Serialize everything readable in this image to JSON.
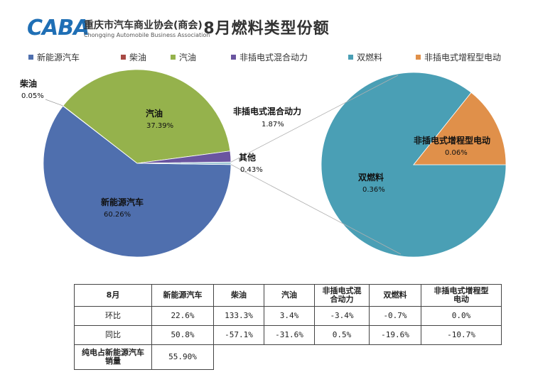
{
  "logo": {
    "mark": "CABA",
    "name_cn": "重庆市汽车商业协会(商会)",
    "name_en": "Chongqing Automobile Business Association"
  },
  "title": "8月燃料类型份额",
  "legend": [
    {
      "name": "新能源汽车",
      "color": "#4f6fae"
    },
    {
      "name": "柴油",
      "color": "#a84a45"
    },
    {
      "name": "汽油",
      "color": "#95b24c"
    },
    {
      "name": "非插电式混合动力",
      "color": "#6a55a0"
    },
    {
      "name": "双燃料",
      "color": "#4a9fb5"
    },
    {
      "name": "非插电式增程型电动",
      "color": "#e0904a"
    }
  ],
  "chart_data": {
    "type": "pie",
    "title": "8月燃料类型份额",
    "main_pie": {
      "slices": [
        {
          "name": "新能源汽车",
          "value": 60.26,
          "label": "60.26%",
          "color": "#4f6fae"
        },
        {
          "name": "柴油",
          "value": 0.05,
          "label": "0.05%",
          "color": "#a84a45"
        },
        {
          "name": "汽油",
          "value": 37.39,
          "label": "37.39%",
          "color": "#95b24c"
        },
        {
          "name": "非插电式混合动力",
          "value": 1.87,
          "label": "1.87%",
          "color": "#6a55a0"
        },
        {
          "name": "其他",
          "value": 0.43,
          "label": "0.43%",
          "color": "#9ec7d4"
        }
      ]
    },
    "secondary_pie": {
      "parent": "其他",
      "slices": [
        {
          "name": "双燃料",
          "value": 0.36,
          "label": "0.36%",
          "color": "#4a9fb5"
        },
        {
          "name": "非插电式增程型电动",
          "value": 0.06,
          "label": "0.06%",
          "color": "#e0904a"
        }
      ]
    }
  },
  "table": {
    "headers": [
      "8月",
      "新能源汽车",
      "柴油",
      "汽油",
      "非插电式混\n合动力",
      "双燃料",
      "非插电式增程型\n电动"
    ],
    "rows": [
      {
        "label": "环比",
        "values": [
          "22.6%",
          "133.3%",
          "3.4%",
          "-3.4%",
          "-0.7%",
          "0.0%"
        ]
      },
      {
        "label": "同比",
        "values": [
          "50.8%",
          "-57.1%",
          "-31.6%",
          "0.5%",
          "-19.6%",
          "-10.7%"
        ]
      }
    ],
    "footer_label": "纯电占新能源汽车\n销量",
    "footer_value": "55.90%"
  }
}
